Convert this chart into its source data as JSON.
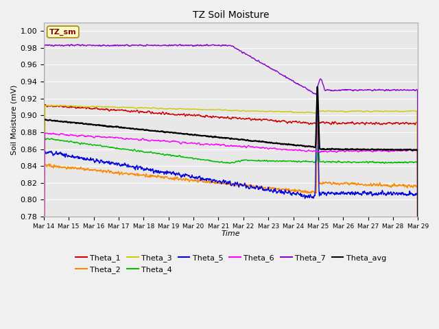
{
  "title": "TZ Soil Moisture",
  "xlabel": "Time",
  "ylabel": "Soil Moisture (mV)",
  "ylim": [
    0.78,
    1.01
  ],
  "background_color": "#e8e8e8",
  "plot_bg_color": "#e8e8e8",
  "grid_color": "#ffffff",
  "legend_label": "TZ_sm",
  "series_colors": {
    "Theta_1": "#cc0000",
    "Theta_2": "#ff8800",
    "Theta_3": "#cccc00",
    "Theta_4": "#00bb00",
    "Theta_5": "#0000dd",
    "Theta_6": "#ff00ff",
    "Theta_7": "#8800cc",
    "Theta_avg": "#000000"
  },
  "x_tick_labels": [
    "Mar 14",
    "Mar 15",
    "Mar 16",
    "Mar 17",
    "Mar 18",
    "Mar 19",
    "Mar 20",
    "Mar 21",
    "Mar 22",
    "Mar 23",
    "Mar 24",
    "Mar 25",
    "Mar 26",
    "Mar 27",
    "Mar 28",
    "Mar 29"
  ]
}
